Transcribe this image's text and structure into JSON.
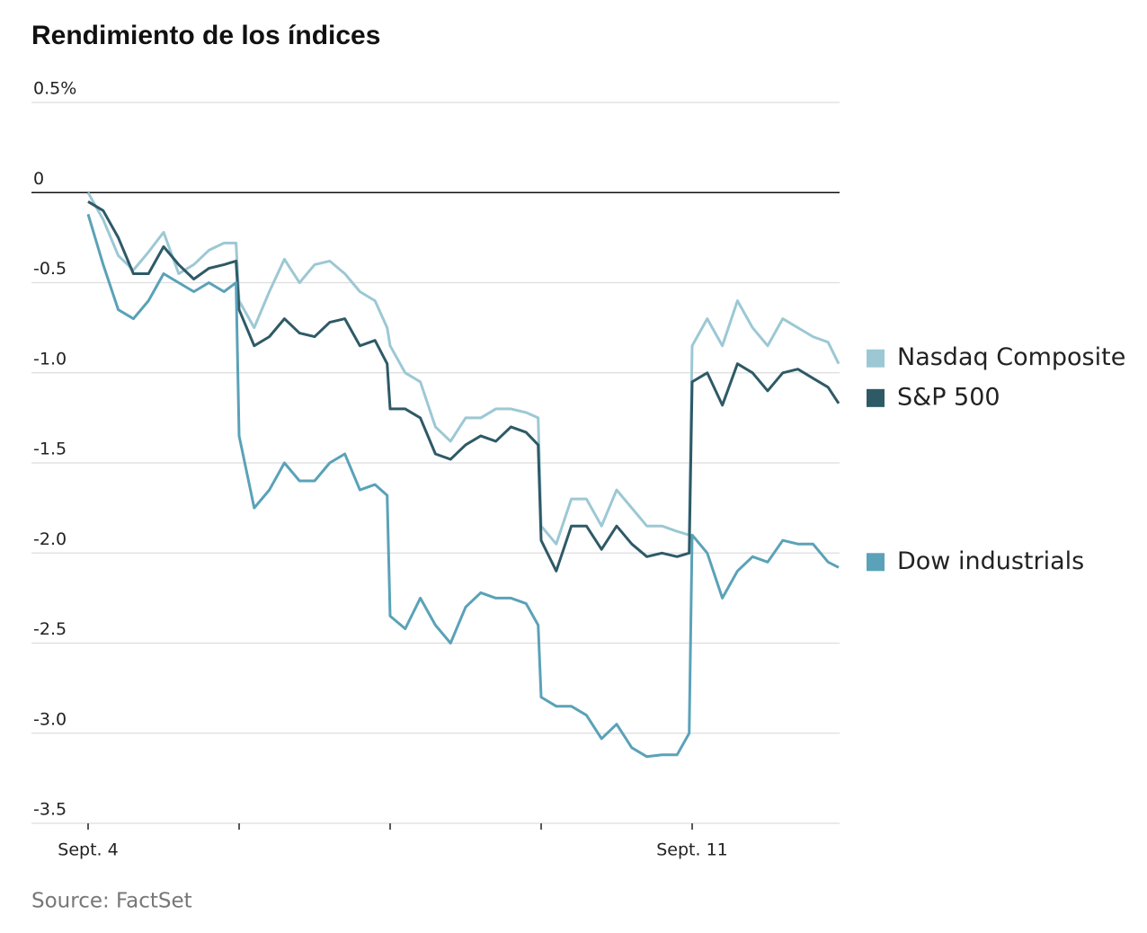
{
  "chart_data": {
    "type": "line",
    "title": "Rendimiento de los índices",
    "source": "Source: FactSet",
    "x": [
      0,
      0.1,
      0.2,
      0.3,
      0.4,
      0.5,
      0.6,
      0.7,
      0.8,
      0.9,
      0.98,
      1,
      1.1,
      1.2,
      1.3,
      1.4,
      1.5,
      1.6,
      1.7,
      1.8,
      1.9,
      1.98,
      2,
      2.1,
      2.2,
      2.3,
      2.4,
      2.5,
      2.6,
      2.7,
      2.8,
      2.9,
      2.98,
      3,
      3.1,
      3.2,
      3.3,
      3.4,
      3.5,
      3.6,
      3.7,
      3.8,
      3.9,
      3.98,
      4,
      4.1,
      4.2,
      4.3,
      4.4,
      4.5,
      4.6,
      4.7,
      4.8,
      4.9,
      4.97
    ],
    "xlim": [
      0,
      4.976
    ],
    "xticks": [
      {
        "value": 0,
        "label": "Sept. 4"
      },
      {
        "value": 1,
        "label": null
      },
      {
        "value": 2,
        "label": null
      },
      {
        "value": 3,
        "label": null
      },
      {
        "value": 4,
        "label": "Sept. 11"
      }
    ],
    "ylim": [
      -3.5,
      0.5
    ],
    "yticks": [
      {
        "value": 0.5,
        "label": "0.5%"
      },
      0,
      -0.5,
      {
        "value": -1,
        "label": "-1.0"
      },
      -1.5,
      {
        "value": -2,
        "label": "-2.0"
      },
      -2.5,
      {
        "value": -3,
        "label": "-3.0"
      },
      -3.5
    ],
    "grid": true,
    "series": [
      {
        "name": "Nasdaq Composite",
        "color": "#9cc8d4",
        "values": [
          0,
          -0.15,
          -0.35,
          -0.43,
          -0.33,
          -0.22,
          -0.45,
          -0.4,
          -0.32,
          -0.28,
          -0.28,
          -0.6,
          -0.75,
          -0.55,
          -0.37,
          -0.5,
          -0.4,
          -0.38,
          -0.45,
          -0.55,
          -0.6,
          -0.75,
          -0.85,
          -1.0,
          -1.05,
          -1.3,
          -1.38,
          -1.25,
          -1.25,
          -1.2,
          -1.2,
          -1.22,
          -1.25,
          -1.85,
          -1.95,
          -1.7,
          -1.7,
          -1.85,
          -1.65,
          -1.75,
          -1.85,
          -1.85,
          -1.88,
          -1.9,
          -0.85,
          -0.7,
          -0.85,
          -0.6,
          -0.75,
          -0.85,
          -0.7,
          -0.75,
          -0.8,
          -0.83,
          -0.95
        ]
      },
      {
        "name": "S&P 500",
        "color": "#2e5a66",
        "values": [
          -0.05,
          -0.1,
          -0.25,
          -0.45,
          -0.45,
          -0.3,
          -0.4,
          -0.48,
          -0.42,
          -0.4,
          -0.38,
          -0.65,
          -0.85,
          -0.8,
          -0.7,
          -0.78,
          -0.8,
          -0.72,
          -0.7,
          -0.85,
          -0.82,
          -0.95,
          -1.2,
          -1.2,
          -1.25,
          -1.45,
          -1.48,
          -1.4,
          -1.35,
          -1.38,
          -1.3,
          -1.33,
          -1.4,
          -1.93,
          -2.1,
          -1.85,
          -1.85,
          -1.98,
          -1.85,
          -1.95,
          -2.02,
          -2.0,
          -2.02,
          -2.0,
          -1.05,
          -1.0,
          -1.18,
          -0.95,
          -1.0,
          -1.1,
          -1.0,
          -0.98,
          -1.03,
          -1.08,
          -1.17
        ]
      },
      {
        "name": "Dow industrials",
        "color": "#5aa2b8",
        "values": [
          -0.12,
          -0.4,
          -0.65,
          -0.7,
          -0.6,
          -0.45,
          -0.5,
          -0.55,
          -0.5,
          -0.55,
          -0.5,
          -1.35,
          -1.75,
          -1.65,
          -1.5,
          -1.6,
          -1.6,
          -1.5,
          -1.45,
          -1.65,
          -1.62,
          -1.68,
          -2.35,
          -2.42,
          -2.25,
          -2.4,
          -2.5,
          -2.3,
          -2.22,
          -2.25,
          -2.25,
          -2.28,
          -2.4,
          -2.8,
          -2.85,
          -2.85,
          -2.9,
          -3.03,
          -2.95,
          -3.08,
          -3.13,
          -3.12,
          -3.12,
          -3.0,
          -1.9,
          -2.0,
          -2.25,
          -2.1,
          -2.02,
          -2.05,
          -1.93,
          -1.95,
          -1.95,
          -2.05,
          -2.08
        ]
      }
    ]
  }
}
